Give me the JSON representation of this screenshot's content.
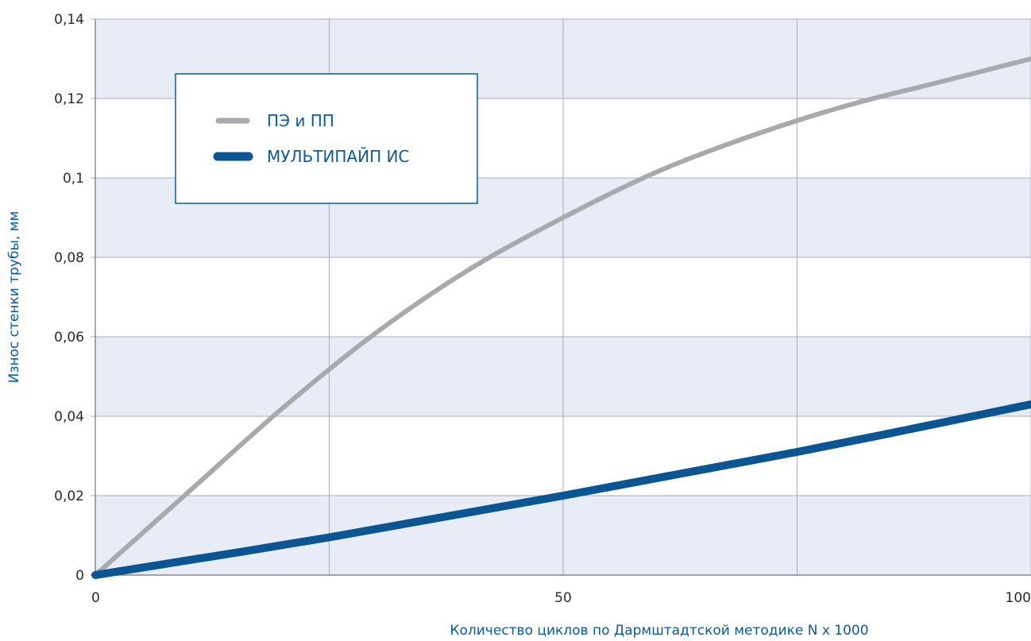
{
  "chart_data": {
    "type": "line",
    "title": "",
    "xlabel": "Количество циклов по Дармштадтской методике N x 1000",
    "ylabel": "Износ стенки трубы, мм",
    "xlim": [
      0,
      100
    ],
    "ylim": [
      0,
      0.14
    ],
    "x_ticks": [
      0,
      50,
      100
    ],
    "x_tick_labels": [
      "0",
      "50",
      "100"
    ],
    "y_ticks": [
      0,
      0.02,
      0.04,
      0.06,
      0.08,
      0.1,
      0.12,
      0.14
    ],
    "y_tick_labels": [
      "0",
      "0,02",
      "0,04",
      "0,06",
      "0,08",
      "0,1",
      "0,12",
      "0,14"
    ],
    "x_gridlines": [
      0,
      25,
      50,
      75,
      100
    ],
    "grid": true,
    "legend_position": "top-left",
    "colors": {
      "plot_background": "#e8ecf6",
      "grid": "#a9acb3",
      "axis_text": "#0b5a99"
    },
    "series": [
      {
        "name": "ПЭ и ПП",
        "color": "#a8a9ad",
        "x": [
          0,
          10,
          20,
          30,
          40,
          50,
          60,
          70,
          80,
          90,
          100
        ],
        "y": [
          0,
          0.021,
          0.042,
          0.061,
          0.077,
          0.09,
          0.1015,
          0.1105,
          0.118,
          0.124,
          0.13
        ]
      },
      {
        "name": "МУЛЬТИПАЙП ИС",
        "color": "#0b5692",
        "x": [
          0,
          25,
          50,
          75,
          100
        ],
        "y": [
          0,
          0.0095,
          0.02,
          0.031,
          0.043
        ]
      }
    ]
  }
}
